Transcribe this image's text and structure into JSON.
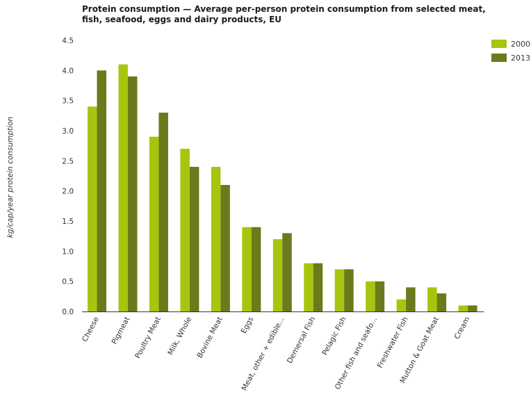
{
  "chart_data": {
    "type": "bar",
    "title": "Protein consumption — Average per-person protein consumption from selected meat, fish, seafood, eggs and dairy products, EU",
    "ylabel": "kg/cap/year protein consumption",
    "xlabel": "",
    "ylim": [
      0,
      4.5
    ],
    "yticks": [
      "0.0",
      "0.5",
      "1.0",
      "1.5",
      "2.0",
      "2.5",
      "3.0",
      "3.5",
      "4.0",
      "4.5"
    ],
    "categories": [
      "Cheese",
      "Pigmeat",
      "Poultry Meat",
      "Milk, Whole",
      "Bovine Meat",
      "Eggs",
      "Meat, other + edible...",
      "Demersal Fish",
      "Pelagic Fish",
      "Other fish and seafo...",
      "Freshwater Fish",
      "Mutton & Goat Meat",
      "Cream"
    ],
    "series": [
      {
        "name": "2000",
        "color": "#a9c40f",
        "values": [
          3.4,
          4.1,
          2.9,
          2.7,
          2.4,
          1.4,
          1.2,
          0.8,
          0.7,
          0.5,
          0.2,
          0.4,
          0.1
        ]
      },
      {
        "name": "2013",
        "color": "#6b7a1a",
        "values": [
          4.0,
          3.9,
          3.3,
          2.4,
          2.1,
          1.4,
          1.3,
          0.8,
          0.7,
          0.5,
          0.4,
          0.3,
          0.1
        ]
      }
    ],
    "grid": false,
    "legend": "top-right"
  }
}
